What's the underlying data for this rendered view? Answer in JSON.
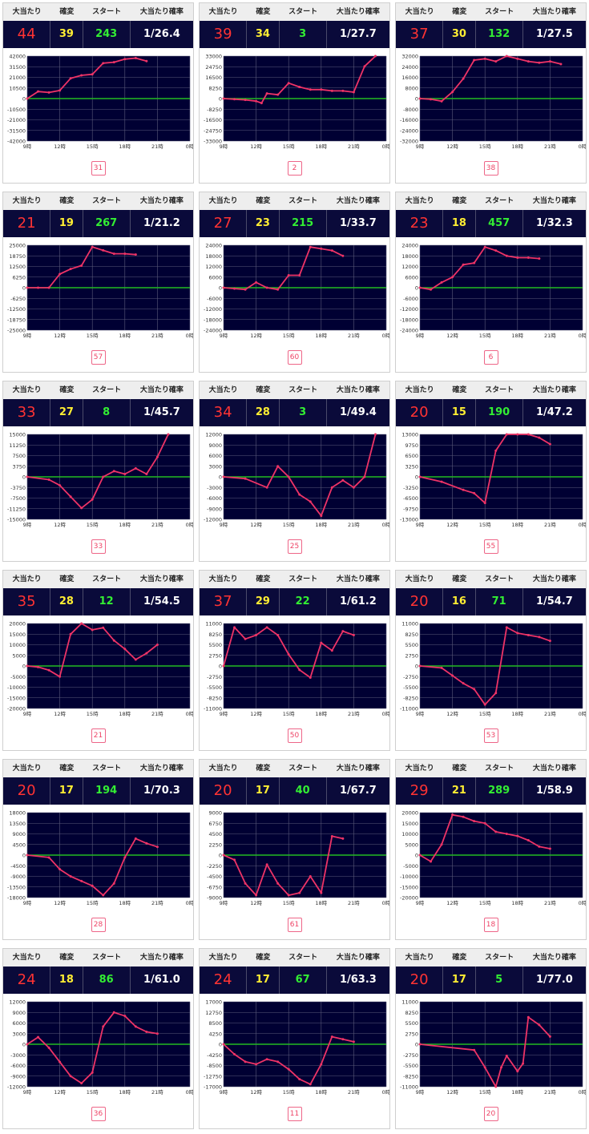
{
  "headers": {
    "big_hits": "大当たり",
    "kakuhen": "確変",
    "start": "スタート",
    "probability": "大当たり確率"
  },
  "x_ticks": [
    "9時",
    "12時",
    "15時",
    "18時",
    "21時",
    "0時"
  ],
  "colors": {
    "plot_bg": "#000033",
    "grid": "#5a5a7a",
    "zero_line": "#22bb22",
    "series": "#ee3366",
    "stats_bg": "#0a0a3a"
  },
  "chart_data": [
    {
      "type": "line",
      "machine": "31",
      "stats": {
        "big_hits": "44",
        "kakuhen": "39",
        "start": "243",
        "probability": "1/26.4"
      },
      "ylim": [
        -42000,
        42000
      ],
      "y_ticks": [
        "42000",
        "31500",
        "21000",
        "10500",
        "0",
        "-10500",
        "-21000",
        "-31500",
        "-42000"
      ],
      "x": [
        9,
        10,
        11,
        12,
        13,
        14,
        15,
        16,
        17,
        18,
        19,
        20
      ],
      "values": [
        0,
        7000,
        6000,
        8000,
        20000,
        23000,
        24000,
        35000,
        36000,
        39000,
        40000,
        37000
      ]
    },
    {
      "type": "line",
      "machine": "2",
      "stats": {
        "big_hits": "39",
        "kakuhen": "34",
        "start": "3",
        "probability": "1/27.7"
      },
      "ylim": [
        -33000,
        33000
      ],
      "y_ticks": [
        "33000",
        "24750",
        "16500",
        "8250",
        "0",
        "-8250",
        "-16500",
        "-24750",
        "-33000"
      ],
      "x": [
        9,
        10,
        11,
        12,
        12.5,
        13,
        14,
        15,
        16,
        17,
        18,
        19,
        20,
        21,
        22,
        23
      ],
      "values": [
        0,
        -500,
        -1000,
        -2000,
        -3500,
        4000,
        3000,
        12000,
        9000,
        7000,
        7000,
        6000,
        6000,
        5000,
        25000,
        33000
      ]
    },
    {
      "type": "line",
      "machine": "38",
      "stats": {
        "big_hits": "37",
        "kakuhen": "30",
        "start": "132",
        "probability": "1/27.5"
      },
      "ylim": [
        -32000,
        32000
      ],
      "y_ticks": [
        "32000",
        "24000",
        "16000",
        "8000",
        "0",
        "-8000",
        "-16000",
        "-24000",
        "-32000"
      ],
      "x": [
        9,
        10,
        11,
        12,
        13,
        14,
        15,
        16,
        17,
        18,
        19,
        20,
        21,
        22
      ],
      "values": [
        0,
        -500,
        -2000,
        5000,
        15000,
        29000,
        30000,
        28000,
        32000,
        30000,
        28000,
        27000,
        28000,
        26000
      ]
    },
    {
      "type": "line",
      "machine": "57",
      "stats": {
        "big_hits": "21",
        "kakuhen": "19",
        "start": "267",
        "probability": "1/21.2"
      },
      "ylim": [
        -25000,
        25000
      ],
      "y_ticks": [
        "25000",
        "18750",
        "12500",
        "6250",
        "0",
        "-6250",
        "-12500",
        "-18750",
        "-25000"
      ],
      "x": [
        9,
        10,
        11,
        12,
        13,
        14,
        15,
        16,
        17,
        18,
        19
      ],
      "values": [
        0,
        0,
        0,
        8000,
        11000,
        13000,
        24000,
        22000,
        20000,
        20000,
        19500
      ]
    },
    {
      "type": "line",
      "machine": "60",
      "stats": {
        "big_hits": "27",
        "kakuhen": "23",
        "start": "215",
        "probability": "1/33.7"
      },
      "ylim": [
        -24000,
        24000
      ],
      "y_ticks": [
        "24000",
        "18000",
        "12000",
        "6000",
        "0",
        "-6000",
        "-12000",
        "-18000",
        "-24000"
      ],
      "x": [
        9,
        10,
        11,
        12,
        13,
        14,
        15,
        16,
        17,
        18,
        19,
        20
      ],
      "values": [
        0,
        -500,
        -1000,
        3000,
        0,
        -1000,
        7000,
        7000,
        23000,
        22000,
        21000,
        18000
      ]
    },
    {
      "type": "line",
      "machine": "6",
      "stats": {
        "big_hits": "23",
        "kakuhen": "18",
        "start": "457",
        "probability": "1/32.3"
      },
      "ylim": [
        -24000,
        24000
      ],
      "y_ticks": [
        "24000",
        "18000",
        "12000",
        "6000",
        "0",
        "-6000",
        "-12000",
        "-18000",
        "-24000"
      ],
      "x": [
        9,
        10,
        11,
        12,
        13,
        14,
        15,
        16,
        17,
        18,
        19,
        20
      ],
      "values": [
        0,
        -1000,
        3000,
        6000,
        13000,
        14000,
        23000,
        21000,
        18000,
        17000,
        17000,
        16500
      ]
    },
    {
      "type": "line",
      "machine": "33",
      "stats": {
        "big_hits": "33",
        "kakuhen": "27",
        "start": "8",
        "probability": "1/45.7"
      },
      "ylim": [
        -15000,
        15000
      ],
      "y_ticks": [
        "15000",
        "11250",
        "7500",
        "3750",
        "0",
        "-3750",
        "-7500",
        "-11250",
        "-15000"
      ],
      "x": [
        9,
        11,
        12,
        13,
        14,
        15,
        16,
        17,
        18,
        19,
        20,
        21,
        22
      ],
      "values": [
        0,
        -1000,
        -3000,
        -7000,
        -11000,
        -8000,
        0,
        2000,
        1000,
        3000,
        1000,
        7000,
        15000
      ]
    },
    {
      "type": "line",
      "machine": "25",
      "stats": {
        "big_hits": "34",
        "kakuhen": "28",
        "start": "3",
        "probability": "1/49.4"
      },
      "ylim": [
        -12000,
        12000
      ],
      "y_ticks": [
        "12000",
        "9000",
        "6000",
        "3000",
        "0",
        "-3000",
        "-6000",
        "-9000",
        "-12000"
      ],
      "x": [
        9,
        11,
        13,
        14,
        15,
        16,
        17,
        18,
        19,
        20,
        21,
        22,
        23
      ],
      "values": [
        0,
        -500,
        -3000,
        3000,
        0,
        -5000,
        -7000,
        -11000,
        -3000,
        -1000,
        -3000,
        0,
        12000
      ]
    },
    {
      "type": "line",
      "machine": "55",
      "stats": {
        "big_hits": "20",
        "kakuhen": "15",
        "start": "190",
        "probability": "1/47.2"
      },
      "ylim": [
        -13000,
        13000
      ],
      "y_ticks": [
        "13000",
        "9750",
        "6500",
        "3250",
        "0",
        "-3250",
        "-6500",
        "-9750",
        "-13000"
      ],
      "x": [
        9,
        11,
        13,
        14,
        15,
        16,
        17,
        18,
        19,
        20,
        21
      ],
      "values": [
        0,
        -1500,
        -4000,
        -5000,
        -8000,
        8000,
        13000,
        13000,
        13000,
        12000,
        10000
      ]
    },
    {
      "type": "line",
      "machine": "21",
      "stats": {
        "big_hits": "35",
        "kakuhen": "28",
        "start": "12",
        "probability": "1/54.5"
      },
      "ylim": [
        -20000,
        20000
      ],
      "y_ticks": [
        "20000",
        "15000",
        "10000",
        "5000",
        "0",
        "-5000",
        "-10000",
        "-15000",
        "-20000"
      ],
      "x": [
        9,
        10,
        11,
        12,
        13,
        14,
        15,
        16,
        17,
        18,
        19,
        20,
        21
      ],
      "values": [
        0,
        -500,
        -2000,
        -5000,
        15000,
        20000,
        17000,
        18000,
        12000,
        8000,
        3000,
        6000,
        10000
      ]
    },
    {
      "type": "line",
      "machine": "50",
      "stats": {
        "big_hits": "37",
        "kakuhen": "29",
        "start": "22",
        "probability": "1/61.2"
      },
      "ylim": [
        -11000,
        11000
      ],
      "y_ticks": [
        "11000",
        "8250",
        "5500",
        "2750",
        "0",
        "-2750",
        "-5500",
        "-8250",
        "-11000"
      ],
      "x": [
        9,
        10,
        11,
        12,
        13,
        14,
        15,
        16,
        17,
        18,
        19,
        20,
        21
      ],
      "values": [
        0,
        10000,
        7000,
        8000,
        10000,
        8000,
        3000,
        -1000,
        -3000,
        6000,
        4000,
        9000,
        8000
      ]
    },
    {
      "type": "line",
      "machine": "53",
      "stats": {
        "big_hits": "20",
        "kakuhen": "16",
        "start": "71",
        "probability": "1/54.7"
      },
      "ylim": [
        -11000,
        11000
      ],
      "y_ticks": [
        "11000",
        "8250",
        "5500",
        "2750",
        "0",
        "-2750",
        "-5500",
        "-8250",
        "-11000"
      ],
      "x": [
        9,
        11,
        12,
        13,
        14,
        15,
        16,
        17,
        18,
        19,
        20,
        21
      ],
      "values": [
        0,
        -500,
        -2500,
        -4500,
        -6000,
        -10000,
        -7000,
        10000,
        8500,
        8000,
        7500,
        6500
      ]
    },
    {
      "type": "line",
      "machine": "28",
      "stats": {
        "big_hits": "20",
        "kakuhen": "17",
        "start": "194",
        "probability": "1/70.3"
      },
      "ylim": [
        -18000,
        18000
      ],
      "y_ticks": [
        "18000",
        "13500",
        "9000",
        "4500",
        "0",
        "-4500",
        "-9000",
        "-13500",
        "-18000"
      ],
      "x": [
        9,
        11,
        12,
        13,
        14,
        15,
        16,
        17,
        18,
        19,
        20,
        21
      ],
      "values": [
        0,
        -1000,
        -6000,
        -9000,
        -11000,
        -13000,
        -17000,
        -12000,
        -1000,
        7000,
        5000,
        3500
      ]
    },
    {
      "type": "line",
      "machine": "61",
      "stats": {
        "big_hits": "20",
        "kakuhen": "17",
        "start": "40",
        "probability": "1/67.7"
      },
      "ylim": [
        -9000,
        9000
      ],
      "y_ticks": [
        "9000",
        "6750",
        "4500",
        "2250",
        "0",
        "-2250",
        "-4500",
        "-6750",
        "-9000"
      ],
      "x": [
        9,
        10,
        11,
        12,
        13,
        14,
        15,
        16,
        17,
        18,
        19,
        20
      ],
      "values": [
        0,
        -1000,
        -6000,
        -8500,
        -2000,
        -6000,
        -8500,
        -8000,
        -4500,
        -8000,
        4000,
        3500
      ]
    },
    {
      "type": "line",
      "machine": "18",
      "stats": {
        "big_hits": "29",
        "kakuhen": "21",
        "start": "289",
        "probability": "1/58.9"
      },
      "ylim": [
        -20000,
        20000
      ],
      "y_ticks": [
        "20000",
        "15000",
        "10000",
        "5000",
        "0",
        "-5000",
        "-10000",
        "-15000",
        "-20000"
      ],
      "x": [
        9,
        10,
        11,
        12,
        13,
        14,
        15,
        16,
        17,
        18,
        19,
        20,
        21
      ],
      "values": [
        0,
        -3000,
        5000,
        19000,
        18000,
        16000,
        15000,
        11000,
        10000,
        9000,
        7000,
        4000,
        3000
      ]
    },
    {
      "type": "line",
      "machine": "36",
      "stats": {
        "big_hits": "24",
        "kakuhen": "18",
        "start": "86",
        "probability": "1/61.0"
      },
      "ylim": [
        -12000,
        12000
      ],
      "y_ticks": [
        "12000",
        "9000",
        "6000",
        "3000",
        "0",
        "-3000",
        "-6000",
        "-9000",
        "-12000"
      ],
      "x": [
        9,
        10,
        11,
        12,
        13,
        14,
        15,
        16,
        17,
        18,
        19,
        20,
        21
      ],
      "values": [
        0,
        2000,
        -1000,
        -5000,
        -9000,
        -11000,
        -8000,
        5000,
        9000,
        8000,
        5000,
        3500,
        3000
      ]
    },
    {
      "type": "line",
      "machine": "11",
      "stats": {
        "big_hits": "24",
        "kakuhen": "17",
        "start": "67",
        "probability": "1/63.3"
      },
      "ylim": [
        -17000,
        17000
      ],
      "y_ticks": [
        "17000",
        "12750",
        "8500",
        "4250",
        "0",
        "-4250",
        "-8500",
        "-12750",
        "-17000"
      ],
      "x": [
        9,
        10,
        11,
        12,
        13,
        14,
        15,
        16,
        17,
        18,
        19,
        20,
        21
      ],
      "values": [
        0,
        -4000,
        -7000,
        -8000,
        -6000,
        -7000,
        -10000,
        -14000,
        -16000,
        -8000,
        3000,
        2000,
        1000
      ]
    },
    {
      "type": "line",
      "machine": "20",
      "stats": {
        "big_hits": "20",
        "kakuhen": "17",
        "start": "5",
        "probability": "1/77.0"
      },
      "ylim": [
        -11000,
        11000
      ],
      "y_ticks": [
        "11000",
        "8250",
        "5500",
        "2750",
        "0",
        "-2750",
        "-5500",
        "-8250",
        "-11000"
      ],
      "x": [
        9,
        14,
        15,
        16,
        16.5,
        17,
        18,
        18.5,
        19,
        20,
        21
      ],
      "values": [
        0,
        -1500,
        -6000,
        -11000,
        -6000,
        -3000,
        -7000,
        -5000,
        7000,
        5000,
        2000
      ]
    }
  ]
}
